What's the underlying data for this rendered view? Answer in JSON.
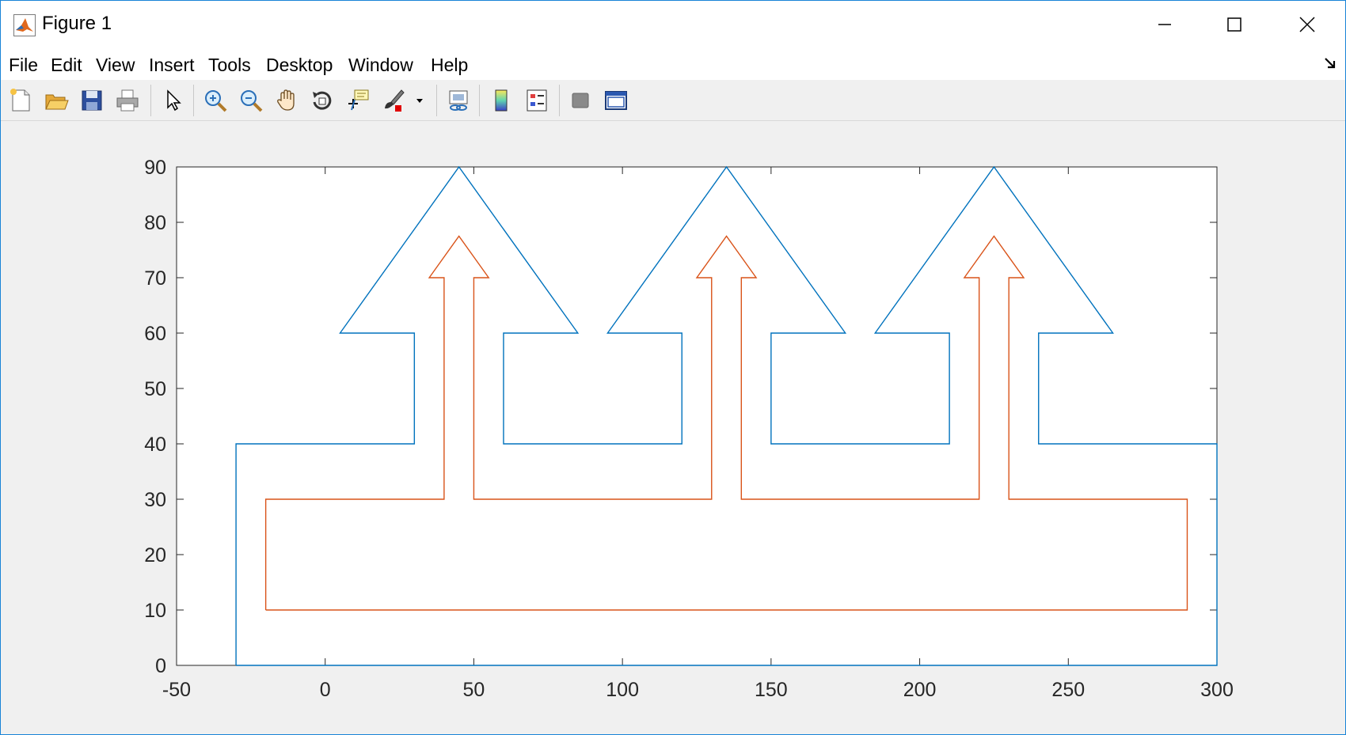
{
  "window": {
    "title": "Figure 1"
  },
  "menu": [
    "File",
    "Edit",
    "View",
    "Insert",
    "Tools",
    "Desktop",
    "Window",
    "Help"
  ],
  "toolbar_icons": [
    "new-figure-icon",
    "open-file-icon",
    "save-icon",
    "print-icon",
    "edit-plot-arrow-icon",
    "zoom-in-icon",
    "zoom-out-icon",
    "pan-hand-icon",
    "rotate-3d-icon",
    "data-cursor-icon",
    "brush-icon",
    "link-plot-icon",
    "colorbar-icon",
    "legend-icon",
    "hide-plot-tools-icon",
    "show-plot-tools-icon"
  ],
  "chart_data": {
    "type": "line",
    "title": "",
    "xlabel": "",
    "ylabel": "",
    "xlim": [
      -50,
      300
    ],
    "ylim": [
      0,
      90
    ],
    "xticks": [
      -50,
      0,
      50,
      100,
      150,
      200,
      250,
      300
    ],
    "yticks": [
      0,
      10,
      20,
      30,
      40,
      50,
      60,
      70,
      80,
      90
    ],
    "grid": false,
    "series": [
      {
        "color": "#0072bd",
        "x": [
          -30,
          -30,
          30,
          30,
          5,
          45,
          85,
          60,
          60,
          120,
          120,
          95,
          135,
          175,
          150,
          150,
          210,
          210,
          185,
          225,
          265,
          240,
          240,
          300,
          300,
          -30
        ],
        "y": [
          0,
          40,
          40,
          60,
          60,
          90,
          60,
          60,
          40,
          40,
          60,
          60,
          90,
          60,
          60,
          40,
          40,
          60,
          60,
          90,
          60,
          60,
          40,
          40,
          0,
          0
        ]
      },
      {
        "color": "#d95319",
        "x": [
          -20,
          -20,
          40,
          40,
          35,
          45,
          55,
          50,
          50,
          130,
          130,
          125,
          135,
          145,
          140,
          140,
          220,
          220,
          215,
          225,
          235,
          230,
          230,
          290,
          290,
          -20
        ],
        "y": [
          10,
          30,
          30,
          70,
          70,
          77.5,
          70,
          70,
          30,
          30,
          70,
          70,
          77.5,
          70,
          70,
          30,
          30,
          70,
          70,
          77.5,
          70,
          70,
          30,
          30,
          10,
          10
        ]
      }
    ]
  }
}
